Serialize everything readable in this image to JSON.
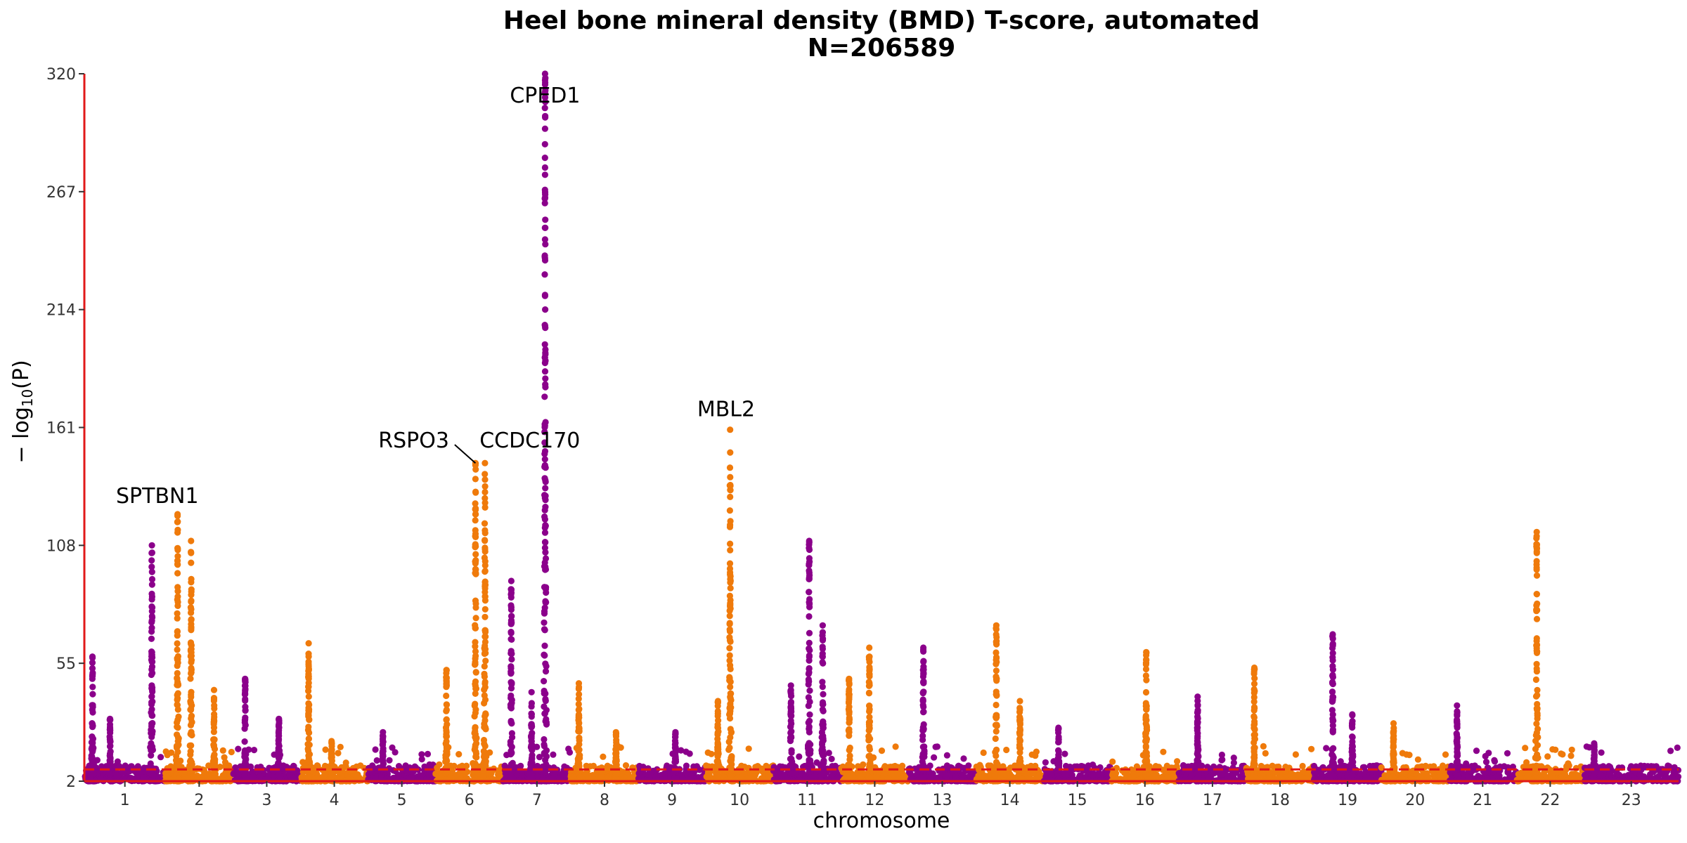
{
  "chart_data": {
    "type": "scatter",
    "subtype": "manhattan",
    "title": "Heel bone mineral density (BMD) T-score, automated",
    "subtitle": "N=206589",
    "xlabel": "chromosome",
    "ylabel": "− log10(P)",
    "ylabel_main": "− log",
    "ylabel_sub": "10",
    "ylabel_tail": "(P)",
    "ylim": [
      2,
      320
    ],
    "yticks": [
      "2",
      "55",
      "108",
      "161",
      "214",
      "267",
      "320"
    ],
    "x_range": [
      0.4,
      24.0
    ],
    "significance_threshold": 7.3,
    "colors": {
      "odd": "#8b008b",
      "even": "#ef7a0b",
      "threshold": "#e11919",
      "axis": "#e11919"
    },
    "chromosomes": [
      {
        "label": "1",
        "start": 0.4,
        "end": 1.6
      },
      {
        "label": "2",
        "start": 1.6,
        "end": 2.6
      },
      {
        "label": "3",
        "start": 2.6,
        "end": 3.6
      },
      {
        "label": "4",
        "start": 3.6,
        "end": 4.6
      },
      {
        "label": "5",
        "start": 4.6,
        "end": 5.6
      },
      {
        "label": "6",
        "start": 5.6,
        "end": 6.6
      },
      {
        "label": "7",
        "start": 6.6,
        "end": 7.6
      },
      {
        "label": "8",
        "start": 7.6,
        "end": 8.6
      },
      {
        "label": "9",
        "start": 8.6,
        "end": 9.6
      },
      {
        "label": "10",
        "start": 9.6,
        "end": 10.6
      },
      {
        "label": "11",
        "start": 10.6,
        "end": 11.6
      },
      {
        "label": "12",
        "start": 11.6,
        "end": 12.6
      },
      {
        "label": "13",
        "start": 12.6,
        "end": 13.6
      },
      {
        "label": "14",
        "start": 13.6,
        "end": 14.6
      },
      {
        "label": "15",
        "start": 14.6,
        "end": 15.6
      },
      {
        "label": "16",
        "start": 15.6,
        "end": 16.6
      },
      {
        "label": "17",
        "start": 16.6,
        "end": 17.6
      },
      {
        "label": "18",
        "start": 17.6,
        "end": 18.6
      },
      {
        "label": "19",
        "start": 18.6,
        "end": 19.6
      },
      {
        "label": "20",
        "start": 19.6,
        "end": 20.6
      },
      {
        "label": "21",
        "start": 20.6,
        "end": 21.6
      },
      {
        "label": "22",
        "start": 21.6,
        "end": 22.6
      },
      {
        "label": "23",
        "start": 22.6,
        "end": 24.0
      }
    ],
    "peaks": [
      {
        "chr": 1,
        "pos": 0.52,
        "max": 58
      },
      {
        "chr": 1,
        "pos": 0.78,
        "max": 30
      },
      {
        "chr": 1,
        "pos": 1.4,
        "max": 108
      },
      {
        "chr": 2,
        "pos": 1.78,
        "max": 122
      },
      {
        "chr": 2,
        "pos": 1.98,
        "max": 110
      },
      {
        "chr": 2,
        "pos": 2.32,
        "max": 43
      },
      {
        "chr": 3,
        "pos": 2.78,
        "max": 48
      },
      {
        "chr": 3,
        "pos": 3.28,
        "max": 30
      },
      {
        "chr": 4,
        "pos": 3.72,
        "max": 64
      },
      {
        "chr": 4,
        "pos": 4.06,
        "max": 20
      },
      {
        "chr": 5,
        "pos": 4.82,
        "max": 24
      },
      {
        "chr": 6,
        "pos": 5.76,
        "max": 52
      },
      {
        "chr": 6,
        "pos": 6.19,
        "max": 145
      },
      {
        "chr": 6,
        "pos": 6.33,
        "max": 145
      },
      {
        "chr": 7,
        "pos": 6.72,
        "max": 92
      },
      {
        "chr": 7,
        "pos": 7.02,
        "max": 42
      },
      {
        "chr": 7,
        "pos": 7.22,
        "max": 320
      },
      {
        "chr": 8,
        "pos": 7.72,
        "max": 46
      },
      {
        "chr": 8,
        "pos": 8.27,
        "max": 24
      },
      {
        "chr": 9,
        "pos": 9.15,
        "max": 24
      },
      {
        "chr": 10,
        "pos": 9.96,
        "max": 160
      },
      {
        "chr": 10,
        "pos": 9.78,
        "max": 38
      },
      {
        "chr": 11,
        "pos": 10.86,
        "max": 45
      },
      {
        "chr": 11,
        "pos": 11.13,
        "max": 110
      },
      {
        "chr": 11,
        "pos": 11.33,
        "max": 72
      },
      {
        "chr": 12,
        "pos": 12.02,
        "max": 62
      },
      {
        "chr": 12,
        "pos": 11.72,
        "max": 48
      },
      {
        "chr": 13,
        "pos": 12.82,
        "max": 62
      },
      {
        "chr": 14,
        "pos": 13.9,
        "max": 72
      },
      {
        "chr": 14,
        "pos": 14.25,
        "max": 38
      },
      {
        "chr": 15,
        "pos": 14.82,
        "max": 26
      },
      {
        "chr": 16,
        "pos": 16.12,
        "max": 60
      },
      {
        "chr": 17,
        "pos": 16.88,
        "max": 40
      },
      {
        "chr": 18,
        "pos": 17.72,
        "max": 53
      },
      {
        "chr": 19,
        "pos": 18.88,
        "max": 68
      },
      {
        "chr": 19,
        "pos": 19.17,
        "max": 32
      },
      {
        "chr": 20,
        "pos": 19.78,
        "max": 28
      },
      {
        "chr": 21,
        "pos": 20.72,
        "max": 36
      },
      {
        "chr": 22,
        "pos": 21.9,
        "max": 114
      },
      {
        "chr": 23,
        "pos": 22.75,
        "max": 19
      }
    ],
    "annotations": [
      {
        "text": "CPED1",
        "x": 7.22,
        "y": 320,
        "anchor": "middle",
        "lx": 7.22,
        "ly": 307
      },
      {
        "text": "MBL2",
        "x": 9.96,
        "y": 160,
        "anchor": "middle",
        "lx": 9.9,
        "ly": 166
      },
      {
        "text": "RSPO3",
        "x": 6.19,
        "y": 145,
        "anchor": "end",
        "lx": 5.8,
        "ly": 152
      },
      {
        "text": "CCDC170",
        "x": 6.33,
        "y": 145,
        "anchor": "start",
        "lx": 6.25,
        "ly": 152
      },
      {
        "text": "SPTBN1",
        "x": 1.78,
        "y": 122,
        "anchor": "middle",
        "lx": 1.48,
        "ly": 127
      }
    ]
  }
}
